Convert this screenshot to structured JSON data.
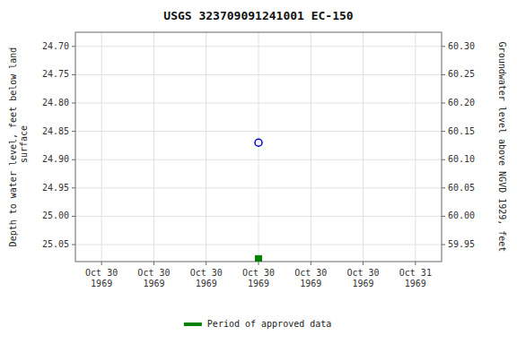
{
  "chart_data": {
    "type": "scatter",
    "title": "USGS 323709091241001 EC-150",
    "y_label": "Depth to water level, feet below land\n surface",
    "y2_label": "Groundwater level above NGVD 1929, feet",
    "categories": [
      "Oct 30\n1969",
      "Oct 30\n1969",
      "Oct 30\n1969",
      "Oct 30\n1969",
      "Oct 30\n1969",
      "Oct 30\n1969",
      "Oct 31\n1969"
    ],
    "series": [
      {
        "color": "#0000cc",
        "marker": "circle",
        "values": [
          null,
          null,
          null,
          24.87,
          null,
          null,
          null
        ]
      },
      {
        "name": "Period of approved data",
        "color": "#008000",
        "marker": "square",
        "values": [
          null,
          null,
          null,
          25.075,
          null,
          null,
          null
        ]
      }
    ],
    "ylim": [
      25.08,
      24.675
    ],
    "yticks": [
      {
        "value": 24.7,
        "label": "24.70"
      },
      24.75,
      {
        "value": 24.8,
        "label": "24.80"
      },
      24.85,
      {
        "value": 24.9,
        "label": "24.90"
      },
      24.95,
      {
        "value": 25.0,
        "label": "25.00"
      },
      25.05
    ],
    "y2lim": [
      59.92,
      60.325
    ],
    "y2ticks": [
      {
        "value": 60.3,
        "label": "60.30"
      },
      60.25,
      {
        "value": 60.2,
        "label": "60.20"
      },
      60.15,
      {
        "value": 60.1,
        "label": "60.10"
      },
      60.05,
      {
        "value": 60.0,
        "label": "60.00"
      },
      59.95
    ],
    "grid": true,
    "legend": "bottom"
  }
}
